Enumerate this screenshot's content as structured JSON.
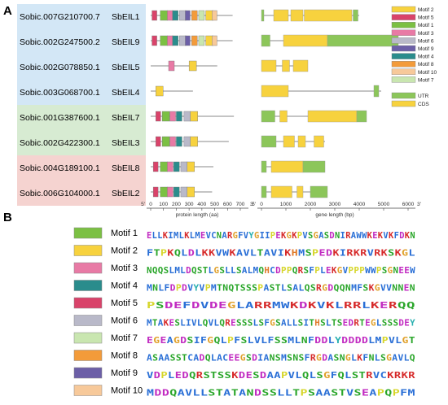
{
  "panel_a": {
    "label": "A",
    "genes": [
      {
        "id": "Sobic.007G210700.7",
        "name": "SbEIL1",
        "group": "blue"
      },
      {
        "id": "Sobic.002G247500.2",
        "name": "SbEIL9",
        "group": "blue"
      },
      {
        "id": "Sobic.002G078850.1",
        "name": "SbEIL5",
        "group": "blue"
      },
      {
        "id": "Sobic.003G068700.1",
        "name": "SbEIL4",
        "group": "blue"
      },
      {
        "id": "Sobic.001G387600.1",
        "name": "SbEIL7",
        "group": "green"
      },
      {
        "id": "Sobic.002G422300.1",
        "name": "SbEIL3",
        "group": "green"
      },
      {
        "id": "Sobic.004G189100.1",
        "name": "SbEIL8",
        "group": "red"
      },
      {
        "id": "Sobic.006G104000.1",
        "name": "SbEIL2",
        "group": "red"
      }
    ],
    "protein_axis": {
      "ticks": [
        "0",
        "100",
        "200",
        "300",
        "400",
        "500",
        "600",
        "700"
      ],
      "ends": [
        "5'",
        "3'"
      ],
      "label": "protein length (aa)"
    },
    "gene_axis": {
      "ticks": [
        "0",
        "1000",
        "2000",
        "3000",
        "4000",
        "5000",
        "6000"
      ],
      "ends": [
        "5'",
        "3'"
      ],
      "label": "gene length (bp)"
    },
    "motif_legend": [
      {
        "label": "Motif 2",
        "color": "#f7d23e"
      },
      {
        "label": "Motif 5",
        "color": "#d9436a"
      },
      {
        "label": "Motif 1",
        "color": "#7bc043"
      },
      {
        "label": "Motif 3",
        "color": "#e87aa5"
      },
      {
        "label": "Motif 6",
        "color": "#b9b9c9"
      },
      {
        "label": "Motif 9",
        "color": "#6c5fa7"
      },
      {
        "label": "Motif 4",
        "color": "#2a8c8c"
      },
      {
        "label": "Motif 8",
        "color": "#f39b3a"
      },
      {
        "label": "Motif 10",
        "color": "#f7c99a"
      },
      {
        "label": "Motif 7",
        "color": "#c9e6b0"
      }
    ],
    "structure_legend": [
      {
        "label": "UTR",
        "color": "#8cc65a"
      },
      {
        "label": "CDS",
        "color": "#f7d23e"
      }
    ],
    "colors": {
      "blue_bg": "#d3e7f6",
      "green_bg": "#d7ebd2",
      "red_bg": "#f5d3d0"
    }
  },
  "panel_b": {
    "label": "B",
    "motifs": [
      {
        "name": "Motif 1",
        "color": "#7bc043",
        "sequence": "ELLKIMLKLMEVCNARGFVYGIIPEKGKPVSGASDNIRAWWKEKVKFDKN"
      },
      {
        "name": "Motif 2",
        "color": "#f7d23e",
        "sequence": "FTPKQLDLKKVWKAVLTAVIKHMSPEDKIRKRVRKSKGL"
      },
      {
        "name": "Motif 3",
        "color": "#e87aa5",
        "sequence": "NQQSLMLDQSTLGSLLSALMQHCDPPQRSFPLEKGVPPPWWPSGNEEW"
      },
      {
        "name": "Motif 4",
        "color": "#2a8c8c",
        "sequence": "MNLFDPDVYVPMTNQTSSSPASTLSALQSRGDQQNMFSKGVVNNEN"
      },
      {
        "name": "Motif 5",
        "color": "#d9436a",
        "sequence": "PSDEFDVDEGLARRMWKDKVKLRRLKERQQ"
      },
      {
        "name": "Motif 6",
        "color": "#b9b9c9",
        "sequence": "MTAKESLIVLQVLQRESSSLSFGSALLSITHSLTSEDRTEGLSSSDEY"
      },
      {
        "name": "Motif 7",
        "color": "#c9e6b0",
        "sequence": "EGEAGDSIFGQLPFSLVLFSSMLNFDDLYDDDDLMPVLGT"
      },
      {
        "name": "Motif 8",
        "color": "#f39b3a",
        "sequence": "ASAASSTCADQLACEEGSDIANSMSNSFRGDASNGLKFNLSGAVLQ"
      },
      {
        "name": "Motif 9",
        "color": "#6c5fa7",
        "sequence": "VDPLEDQRSTSSKDESDAAPVLQLSGFQLSTRVCKRKR"
      },
      {
        "name": "Motif 10",
        "color": "#f7c99a",
        "sequence": "MDDQAVLLSTATANDSSLLTPSAASTVSEAPQPFM"
      }
    ]
  }
}
